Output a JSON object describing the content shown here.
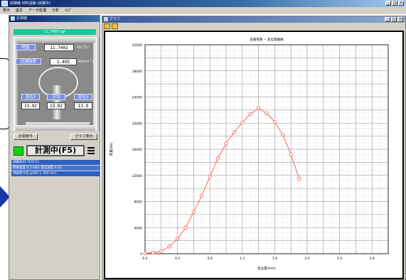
{
  "window": {
    "title": "試験機 材料試験 (試験中)",
    "menu": [
      "表示",
      "設定",
      "データ処理",
      "分析",
      "ﾍﾙﾌﾟ"
    ]
  },
  "measure_panel": {
    "title": "計測値",
    "load_readout": "11.7400 kgf",
    "fields": [
      {
        "label": "荷重",
        "value": "11.7402",
        "unit": "kN (%)"
      },
      {
        "label": "圧縮強度",
        "value": "1.495",
        "unit": "N/mm^2"
      }
    ],
    "displacement": {
      "labels": [
        "変位1",
        "平均",
        "変位2"
      ],
      "values": [
        "13.92",
        "13.92",
        "13.9"
      ]
    },
    "buttons": {
      "settings": "計測条件",
      "graph": "グラフ表示"
    },
    "measure_button": "計測中(F5)",
    "info": [
      "試験体ID TEST21",
      "荷重速度 0.1 kN/s 変位速度 0.25",
      "供試体寸法 φ100 × 200 mm"
    ]
  },
  "graph_window": {
    "title": "グラフ"
  },
  "chart_data": {
    "type": "line",
    "title": "圧縮荷重 − 変位量曲線",
    "xlabel": "変位量(mm)",
    "ylabel": "荷重(kN)",
    "xlim": [
      0,
      3.0
    ],
    "ylim": [
      0,
      32000
    ],
    "xticks": [
      "0.0",
      "0.4",
      "0.8",
      "1.2",
      "1.6",
      "2.0",
      "2.4",
      "2.8"
    ],
    "yticks": [
      "0",
      "4000",
      "8000",
      "12000",
      "16000",
      "20000",
      "24000",
      "28000",
      "32000"
    ],
    "series": [
      {
        "color": "#ff5050",
        "x": [
          0.0,
          0.1,
          0.2,
          0.3,
          0.4,
          0.5,
          0.6,
          0.7,
          0.8,
          0.9,
          1.0,
          1.1,
          1.2,
          1.3,
          1.4,
          1.5,
          1.6,
          1.7,
          1.8,
          1.9
        ],
        "y": [
          50,
          150,
          400,
          1100,
          2300,
          4000,
          6400,
          8900,
          11800,
          14600,
          16900,
          18600,
          20100,
          21400,
          22300,
          21500,
          20200,
          18200,
          15200,
          11500
        ]
      }
    ]
  }
}
